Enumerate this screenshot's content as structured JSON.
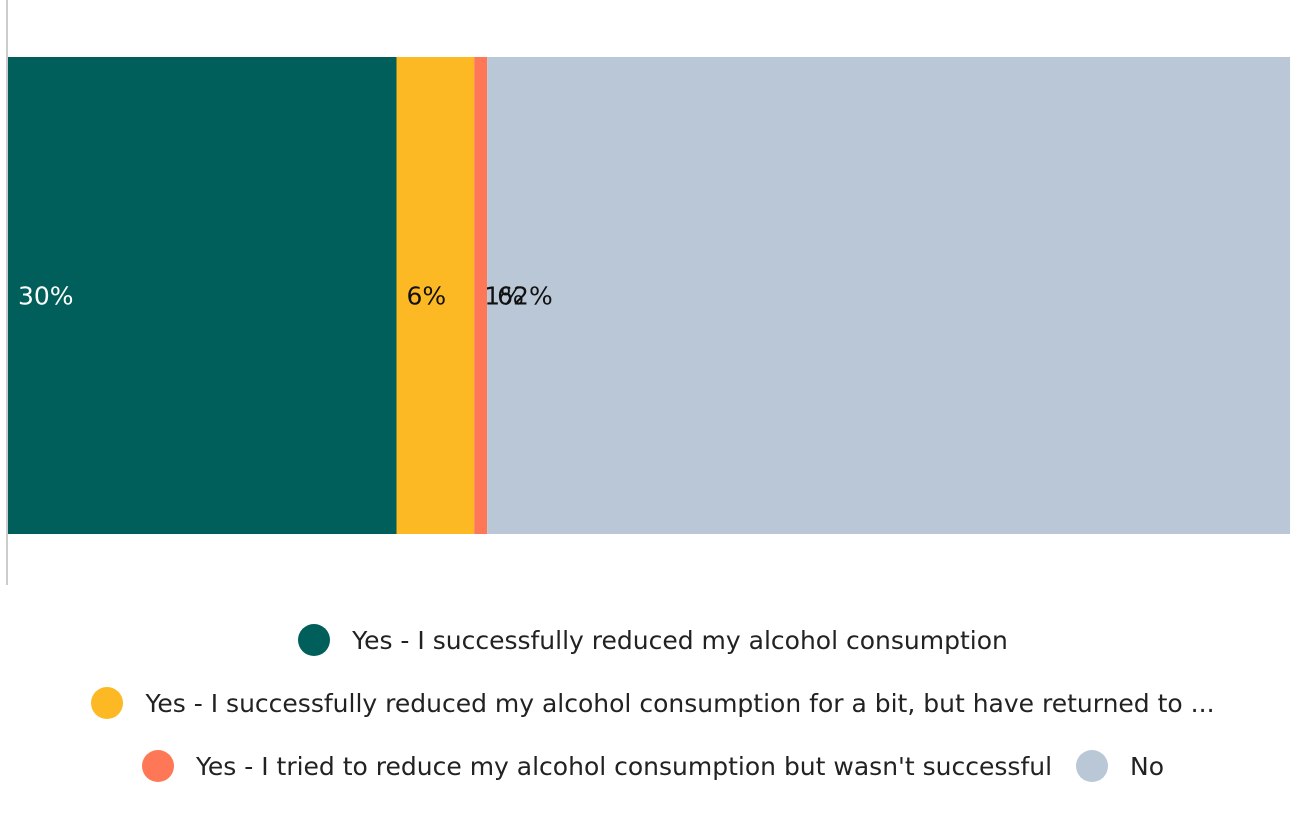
{
  "chart_data": {
    "type": "bar",
    "orientation": "horizontal-stacked",
    "categories": [
      ""
    ],
    "xlim": [
      0,
      100
    ],
    "grid": false,
    "legend_position": "bottom",
    "series": [
      {
        "name": "Yes - I successfully reduced my alcohol consumption",
        "values": [
          30
        ],
        "label": "30%",
        "color": "#005f5a"
      },
      {
        "name": "Yes - I successfully reduced my alcohol consumption for a bit, but have returned to ...",
        "values": [
          6
        ],
        "label": "6%",
        "color": "#fdb924"
      },
      {
        "name": "Yes - I tried to reduce my alcohol consumption but wasn't successful",
        "values": [
          1
        ],
        "label": "1%",
        "color": "#fe7858"
      },
      {
        "name": "No",
        "values": [
          62
        ],
        "label": "62%",
        "color": "#b9c7d6"
      }
    ]
  }
}
